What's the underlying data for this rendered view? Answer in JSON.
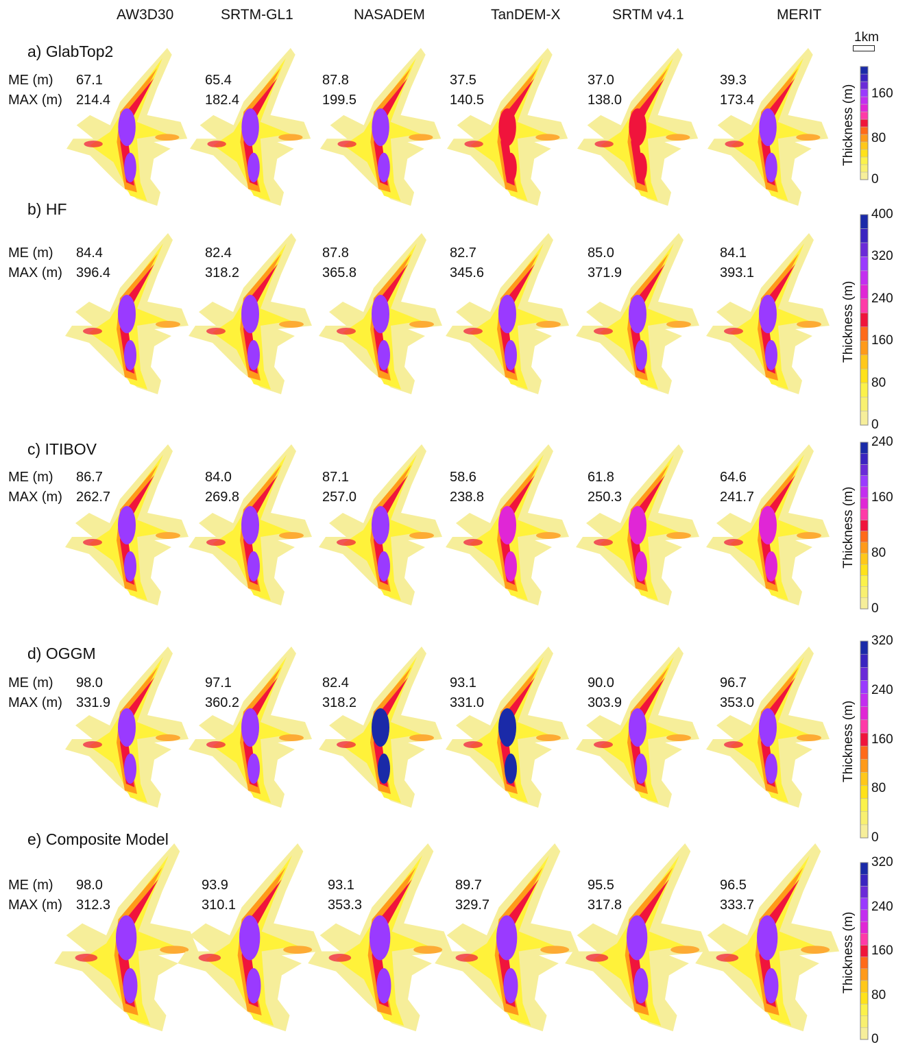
{
  "columns": [
    "AW3D30",
    "SRTM-GL1",
    "NASADEM",
    "TanDEM-X",
    "SRTM v4.1",
    "MERIT"
  ],
  "row_labels": {
    "me": "ME (m)",
    "max": "MAX (m)"
  },
  "scale_bar": "1km",
  "rows": [
    {
      "title": "a) GlabTop2",
      "me": [
        "67.1",
        "65.4",
        "87.8",
        "37.5",
        "37.0",
        "39.3"
      ],
      "max": [
        "214.4",
        "182.4",
        "199.5",
        "140.5",
        "138.0",
        "173.4"
      ],
      "colorbar": {
        "title": "Thickness (m)",
        "ticks": [
          "160",
          "80",
          "0"
        ]
      }
    },
    {
      "title": "b) HF",
      "me": [
        "84.4",
        "82.4",
        "87.8",
        "82.7",
        "85.0",
        "84.1"
      ],
      "max": [
        "396.4",
        "318.2",
        "365.8",
        "345.6",
        "371.9",
        "393.1"
      ],
      "colorbar": {
        "title": "Thickness (m)",
        "ticks": [
          "400",
          "320",
          "240",
          "160",
          "80",
          "0"
        ]
      }
    },
    {
      "title": "c) ITIBOV",
      "me": [
        "86.7",
        "84.0",
        "87.1",
        "58.6",
        "61.8",
        "64.6"
      ],
      "max": [
        "262.7",
        "269.8",
        "257.0",
        "238.8",
        "250.3",
        "241.7"
      ],
      "colorbar": {
        "title": "Thickness (m)",
        "ticks": [
          "240",
          "160",
          "80",
          "0"
        ]
      }
    },
    {
      "title": "d) OGGM",
      "me": [
        "98.0",
        "97.1",
        "82.4",
        "93.1",
        "90.0",
        "96.7"
      ],
      "max": [
        "331.9",
        "360.2",
        "318.2",
        "331.0",
        "303.9",
        "353.0"
      ],
      "colorbar": {
        "title": "Thickness (m)",
        "ticks": [
          "320",
          "240",
          "160",
          "80",
          "0"
        ]
      }
    },
    {
      "title": "e) Composite Model",
      "me": [
        "98.0",
        "93.9",
        "93.1",
        "89.7",
        "95.5",
        "96.5"
      ],
      "max": [
        "312.3",
        "310.1",
        "353.3",
        "329.7",
        "317.8",
        "333.7"
      ],
      "colorbar": {
        "title": "Thickness (m)",
        "ticks": [
          "320",
          "240",
          "160",
          "80",
          "0"
        ]
      }
    }
  ],
  "colors": {
    "low": "#f6ee9a",
    "light": "#fff23a",
    "mid": "#ff9a1a",
    "red": "#f0143c",
    "magenta": "#e026d6",
    "purple": "#9a3aff",
    "blue": "#1a2aa8"
  }
}
